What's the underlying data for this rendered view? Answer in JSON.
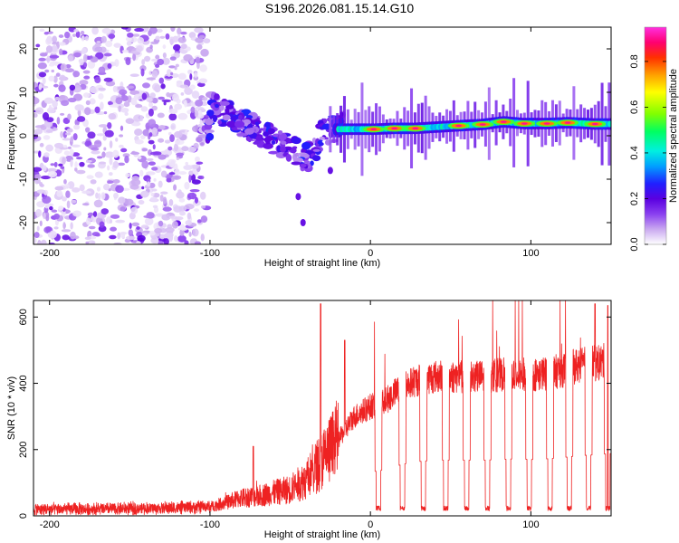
{
  "figure": {
    "title": "S196.2026.081.15.14.G10"
  },
  "chart_data": [
    {
      "type": "heatmap",
      "name": "spectrogram",
      "xlabel": "Height of straight line (km)",
      "ylabel": "Frequency (Hz)",
      "xlim": [
        -210,
        150
      ],
      "ylim": [
        -25,
        25
      ],
      "xticks": [
        -200,
        -100,
        0,
        100
      ],
      "yticks": [
        -20,
        -10,
        0,
        10,
        20
      ],
      "zlabel": "Normalized spectral amplitude",
      "zlim": [
        0,
        0.95
      ],
      "zticks": [
        0.0,
        0.2,
        0.4,
        0.6,
        0.8
      ],
      "colormap": [
        "#ffffff",
        "#c9a8f0",
        "#8a3ff0",
        "#5a00e0",
        "#2020ff",
        "#00a0ff",
        "#00f0e0",
        "#00ff60",
        "#80ff00",
        "#ffff00",
        "#ffa000",
        "#ff3000",
        "#ff0070",
        "#ff30e0"
      ],
      "regions": [
        {
          "label": "noise",
          "x_range": [
            -210,
            -102
          ],
          "f_range": [
            -25,
            25
          ],
          "amplitude": 0.12
        },
        {
          "label": "transition",
          "x_range": [
            -102,
            -30
          ],
          "f_range": [
            -5,
            9
          ],
          "amplitude": 0.2
        },
        {
          "label": "tone",
          "x_range": [
            -30,
            150
          ],
          "f_range": [
            0.5,
            3.5
          ],
          "amplitude": 0.75
        }
      ],
      "transition_ridge": [
        [
          -100,
          7
        ],
        [
          -90,
          5
        ],
        [
          -80,
          3
        ],
        [
          -70,
          1
        ],
        [
          -60,
          -1
        ],
        [
          -50,
          -3
        ],
        [
          -40,
          -5
        ],
        [
          -35,
          -4
        ],
        [
          -30,
          1
        ],
        [
          -20,
          2
        ]
      ],
      "tone_segments": [
        {
          "x": 2,
          "f": 1.5
        },
        {
          "x": 15,
          "f": 1.7
        },
        {
          "x": 28,
          "f": 1.7
        },
        {
          "x": 55,
          "f": 2.3
        },
        {
          "x": 70,
          "f": 2.6
        },
        {
          "x": 83,
          "f": 3.2
        },
        {
          "x": 96,
          "f": 2.8
        },
        {
          "x": 110,
          "f": 2.8
        },
        {
          "x": 123,
          "f": 3.0
        },
        {
          "x": 140,
          "f": 2.7
        }
      ],
      "stray_points": [
        [
          -45,
          -14
        ],
        [
          -42,
          -20
        ],
        [
          -25,
          -8
        ]
      ]
    },
    {
      "type": "line",
      "name": "snr",
      "xlabel": "Height of straight line (km)",
      "ylabel": "SNR (10 * v/v)",
      "xlim": [
        -210,
        150
      ],
      "ylim": [
        0,
        650
      ],
      "xticks": [
        -200,
        -100,
        0,
        100
      ],
      "yticks": [
        0,
        200,
        400,
        600
      ],
      "color": "#ee2222",
      "series": [
        {
          "name": "SNR",
          "x": [
            -210,
            -180,
            -150,
            -120,
            -100,
            -90,
            -80,
            -70,
            -60,
            -50,
            -40,
            -30,
            -20,
            -10,
            0,
            10,
            20,
            30,
            40,
            50,
            60,
            70,
            80,
            90,
            100,
            110,
            120,
            130,
            140,
            150
          ],
          "y": [
            20,
            20,
            22,
            24,
            28,
            40,
            55,
            60,
            70,
            80,
            110,
            170,
            230,
            300,
            330,
            350,
            390,
            410,
            420,
            420,
            420,
            420,
            425,
            430,
            425,
            430,
            440,
            455,
            460,
            470
          ]
        }
      ],
      "peaks": [
        {
          "x": -73,
          "y": 210
        },
        {
          "x": -31,
          "y": 640
        },
        {
          "x": -16,
          "y": 530
        },
        {
          "x": 140,
          "y": 640
        },
        {
          "x": 148,
          "y": 635
        }
      ],
      "dropouts": [
        5,
        20,
        33,
        47,
        60,
        73,
        86,
        99,
        112,
        124,
        136,
        148
      ]
    }
  ]
}
